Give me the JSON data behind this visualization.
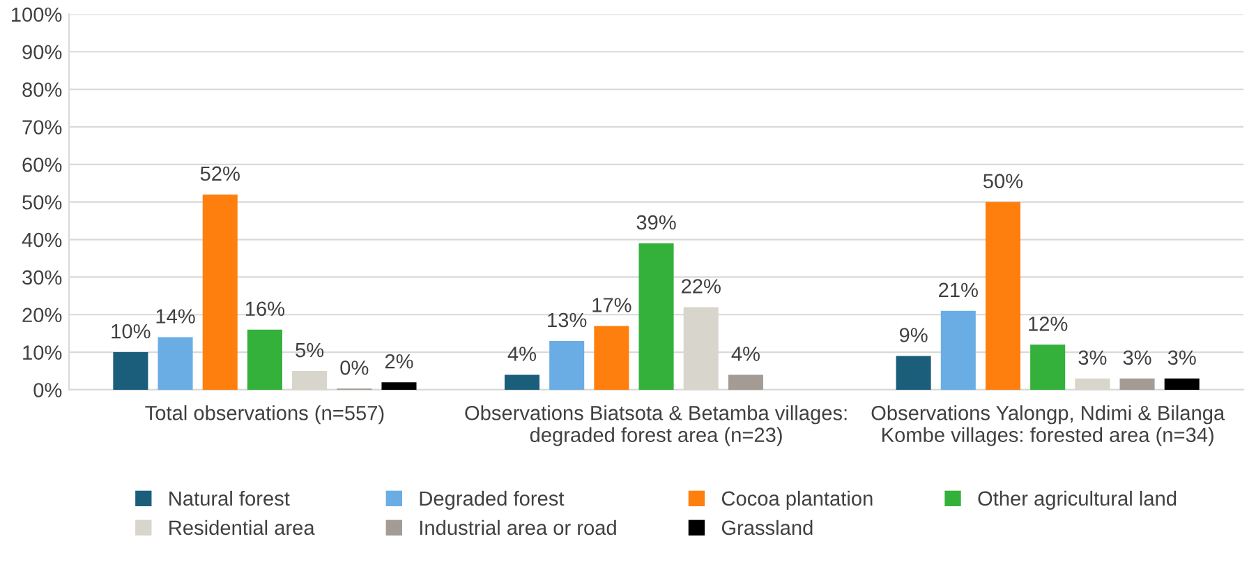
{
  "chart_data": {
    "type": "bar",
    "categories": [
      "Total observations (n=557)",
      "Observations Biatsota & Betamba villages:\ndegraded forest area (n=23)",
      "Observations Yalongp, Ndimi & Bilanga\nKombe villages: forested area (n=34)"
    ],
    "series": [
      {
        "name": "Natural forest",
        "color": "#1b5e7b",
        "values": [
          10,
          4,
          9
        ],
        "value_labels": [
          "10%",
          "4%",
          "9%"
        ]
      },
      {
        "name": "Degraded forest",
        "color": "#6aade4",
        "values": [
          14,
          13,
          21
        ],
        "value_labels": [
          "14%",
          "13%",
          "21%"
        ]
      },
      {
        "name": "Cocoa plantation",
        "color": "#ff7f0e",
        "values": [
          52,
          17,
          50
        ],
        "value_labels": [
          "52%",
          "17%",
          "50%"
        ]
      },
      {
        "name": "Other agricultural land",
        "color": "#33b13a",
        "values": [
          16,
          39,
          12
        ],
        "value_labels": [
          "16%",
          "39%",
          "12%"
        ]
      },
      {
        "name": "Residential area",
        "color": "#d8d5cc",
        "values": [
          5,
          22,
          3
        ],
        "value_labels": [
          "5%",
          "22%",
          "3%"
        ]
      },
      {
        "name": "Industrial area or road",
        "color": "#a49c94",
        "values": [
          0.3,
          4,
          3
        ],
        "value_labels": [
          "0%",
          "4%",
          "3%"
        ]
      },
      {
        "name": "Grassland",
        "color": "#000000",
        "values": [
          2,
          null,
          3
        ],
        "value_labels": [
          "2%",
          null,
          "3%"
        ]
      }
    ],
    "ylim": [
      0,
      100
    ],
    "yticks": [
      {
        "value": 0,
        "label": "0%"
      },
      {
        "value": 10,
        "label": "10%"
      },
      {
        "value": 20,
        "label": "20%"
      },
      {
        "value": 30,
        "label": "30%"
      },
      {
        "value": 40,
        "label": "40%"
      },
      {
        "value": 50,
        "label": "50%"
      },
      {
        "value": 60,
        "label": "60%"
      },
      {
        "value": 70,
        "label": "70%"
      },
      {
        "value": 80,
        "label": "80%"
      },
      {
        "value": 90,
        "label": "90%"
      },
      {
        "value": 100,
        "label": "100%"
      }
    ],
    "grid": "y",
    "legend": "bottom"
  }
}
